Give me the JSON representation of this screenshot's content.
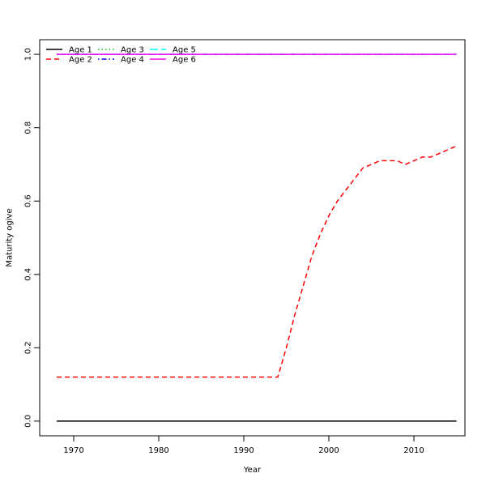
{
  "chart_data": {
    "type": "line",
    "title": "",
    "xlabel": "Year",
    "ylabel": "Maturity ogive",
    "xlim": [
      1966,
      2016
    ],
    "ylim": [
      -0.04,
      1.04
    ],
    "x_ticks": [
      1970,
      1980,
      1990,
      2000,
      2010
    ],
    "y_ticks": [
      0.0,
      0.2,
      0.4,
      0.6,
      0.8,
      1.0
    ],
    "x_tick_labels": [
      "1970",
      "1980",
      "1990",
      "2000",
      "2010"
    ],
    "y_tick_labels": [
      "0.0",
      "0.2",
      "0.4",
      "0.6",
      "0.8",
      "1.0"
    ],
    "grid": false,
    "legend_position": "top-left",
    "x": [
      1968,
      1969,
      1970,
      1971,
      1972,
      1973,
      1974,
      1975,
      1976,
      1977,
      1978,
      1979,
      1980,
      1981,
      1982,
      1983,
      1984,
      1985,
      1986,
      1987,
      1988,
      1989,
      1990,
      1991,
      1992,
      1993,
      1994,
      1995,
      1996,
      1997,
      1998,
      1999,
      2000,
      2001,
      2002,
      2003,
      2004,
      2005,
      2006,
      2007,
      2008,
      2009,
      2010,
      2011,
      2012,
      2013,
      2014,
      2015
    ],
    "series": [
      {
        "name": "Age 1",
        "color": "#000000",
        "dash": "solid",
        "values": [
          0,
          0,
          0,
          0,
          0,
          0,
          0,
          0,
          0,
          0,
          0,
          0,
          0,
          0,
          0,
          0,
          0,
          0,
          0,
          0,
          0,
          0,
          0,
          0,
          0,
          0,
          0,
          0,
          0,
          0,
          0,
          0,
          0,
          0,
          0,
          0,
          0,
          0,
          0,
          0,
          0,
          0,
          0,
          0,
          0,
          0,
          0,
          0
        ]
      },
      {
        "name": "Age 2",
        "color": "#ff0000",
        "dash": "dashed",
        "values": [
          0.12,
          0.12,
          0.12,
          0.12,
          0.12,
          0.12,
          0.12,
          0.12,
          0.12,
          0.12,
          0.12,
          0.12,
          0.12,
          0.12,
          0.12,
          0.12,
          0.12,
          0.12,
          0.12,
          0.12,
          0.12,
          0.12,
          0.12,
          0.12,
          0.12,
          0.12,
          0.12,
          0.2,
          0.29,
          0.37,
          0.45,
          0.51,
          0.56,
          0.6,
          0.63,
          0.66,
          0.69,
          0.7,
          0.71,
          0.71,
          0.71,
          0.7,
          0.71,
          0.72,
          0.72,
          0.73,
          0.74,
          0.75
        ]
      },
      {
        "name": "Age 3",
        "color": "#00cd00",
        "dash": "dotted",
        "values": [
          1,
          1,
          1,
          1,
          1,
          1,
          1,
          1,
          1,
          1,
          1,
          1,
          1,
          1,
          1,
          1,
          1,
          1,
          1,
          1,
          1,
          1,
          1,
          1,
          1,
          1,
          1,
          1,
          1,
          1,
          1,
          1,
          1,
          1,
          1,
          1,
          1,
          1,
          1,
          1,
          1,
          1,
          1,
          1,
          1,
          1,
          1,
          1
        ]
      },
      {
        "name": "Age 4",
        "color": "#0000ff",
        "dash": "dotdash",
        "values": [
          1,
          1,
          1,
          1,
          1,
          1,
          1,
          1,
          1,
          1,
          1,
          1,
          1,
          1,
          1,
          1,
          1,
          1,
          1,
          1,
          1,
          1,
          1,
          1,
          1,
          1,
          1,
          1,
          1,
          1,
          1,
          1,
          1,
          1,
          1,
          1,
          1,
          1,
          1,
          1,
          1,
          1,
          1,
          1,
          1,
          1,
          1,
          1
        ]
      },
      {
        "name": "Age 5",
        "color": "#00ffff",
        "dash": "longdash",
        "values": [
          1,
          1,
          1,
          1,
          1,
          1,
          1,
          1,
          1,
          1,
          1,
          1,
          1,
          1,
          1,
          1,
          1,
          1,
          1,
          1,
          1,
          1,
          1,
          1,
          1,
          1,
          1,
          1,
          1,
          1,
          1,
          1,
          1,
          1,
          1,
          1,
          1,
          1,
          1,
          1,
          1,
          1,
          1,
          1,
          1,
          1,
          1,
          1
        ]
      },
      {
        "name": "Age 6",
        "color": "#ff00ff",
        "dash": "solid",
        "values": [
          1,
          1,
          1,
          1,
          1,
          1,
          1,
          1,
          1,
          1,
          1,
          1,
          1,
          1,
          1,
          1,
          1,
          1,
          1,
          1,
          1,
          1,
          1,
          1,
          1,
          1,
          1,
          1,
          1,
          1,
          1,
          1,
          1,
          1,
          1,
          1,
          1,
          1,
          1,
          1,
          1,
          1,
          1,
          1,
          1,
          1,
          1,
          1
        ]
      }
    ]
  }
}
